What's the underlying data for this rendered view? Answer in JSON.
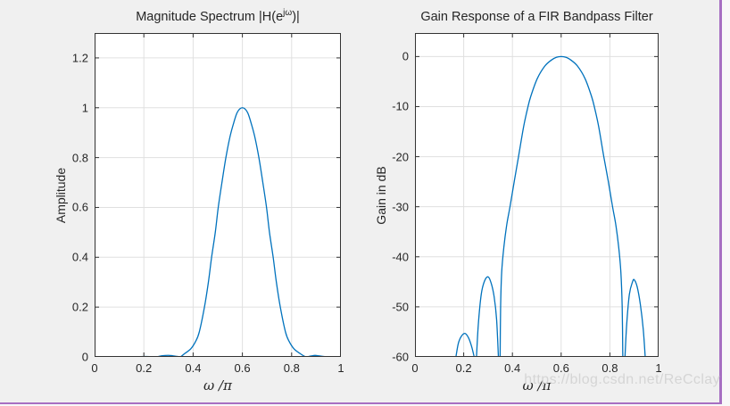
{
  "figure": {
    "background": "#f0f0f0",
    "outer_background": "#f8f8f8",
    "border_color": "#a76fc2"
  },
  "axes_style": {
    "box_color": "#333333",
    "grid_color": "#e0e0e0",
    "tick_label_color": "#262626",
    "plot_background": "#ffffff"
  },
  "watermark": {
    "text": "https://blog.csdn.net/ReCclay",
    "color": "#d5d5d5"
  },
  "chart_data": [
    {
      "type": "line",
      "title_prefix": "Magnitude Spectrum |H(e",
      "title_sup": "jω",
      "title_suffix": ")|",
      "xlabel": "ω /π",
      "ylabel": "Amplitude",
      "xlim": [
        0,
        1
      ],
      "ylim": [
        0,
        1.3
      ],
      "xticks": [
        0,
        0.2,
        0.4,
        0.6,
        0.8,
        1
      ],
      "xtick_labels": [
        "0",
        "0.2",
        "0.4",
        "0.6",
        "0.8",
        "1"
      ],
      "yticks": [
        0,
        0.2,
        0.4,
        0.6,
        0.8,
        1,
        1.2
      ],
      "ytick_labels": [
        "0",
        "0.2",
        "0.4",
        "0.6",
        "0.8",
        "1",
        "1.2"
      ],
      "grid": true,
      "legend": null,
      "line_color": "#0072BD",
      "series": [
        {
          "name": "magnitude",
          "segments": [
            [
              [
                0,
                0
              ],
              [
                0.05,
                0
              ],
              [
                0.1,
                0
              ],
              [
                0.15,
                0
              ],
              [
                0.168,
                0
              ],
              [
                0.185,
                0.0012
              ],
              [
                0.205,
                0.0017
              ],
              [
                0.225,
                0.0012
              ],
              [
                0.244,
                0.0002
              ],
              [
                0.253,
                0.0002
              ],
              [
                0.275,
                0.0048
              ],
              [
                0.3,
                0.0063
              ],
              [
                0.318,
                0.0045
              ],
              [
                0.335,
                0.002
              ],
              [
                0.344,
                0.0004
              ],
              [
                0.35,
                0.001
              ],
              [
                0.365,
                0.013
              ],
              [
                0.39,
                0.032
              ],
              [
                0.41,
                0.062
              ],
              [
                0.425,
                0.1
              ],
              [
                0.446,
                0.2
              ],
              [
                0.462,
                0.3
              ],
              [
                0.475,
                0.4
              ],
              [
                0.49,
                0.5
              ],
              [
                0.502,
                0.6
              ],
              [
                0.517,
                0.7
              ],
              [
                0.533,
                0.8
              ],
              [
                0.55,
                0.885
              ],
              [
                0.565,
                0.94
              ],
              [
                0.58,
                0.983
              ],
              [
                0.6,
                1.0
              ],
              [
                0.62,
                0.983
              ],
              [
                0.635,
                0.94
              ],
              [
                0.65,
                0.885
              ],
              [
                0.667,
                0.8
              ],
              [
                0.683,
                0.7
              ],
              [
                0.698,
                0.6
              ],
              [
                0.71,
                0.5
              ],
              [
                0.725,
                0.4
              ],
              [
                0.738,
                0.3
              ],
              [
                0.754,
                0.2
              ],
              [
                0.775,
                0.1
              ],
              [
                0.79,
                0.062
              ],
              [
                0.81,
                0.032
              ],
              [
                0.835,
                0.013
              ],
              [
                0.855,
                0.001
              ],
              [
                0.862,
                0.0004
              ],
              [
                0.88,
                0.004
              ],
              [
                0.895,
                0.006
              ],
              [
                0.91,
                0.0045
              ],
              [
                0.93,
                0.0015
              ],
              [
                0.946,
                0
              ],
              [
                0.96,
                0
              ],
              [
                0.98,
                0
              ],
              [
                1,
                0
              ]
            ]
          ]
        }
      ]
    },
    {
      "type": "line",
      "title_prefix": "Gain Response of a FIR Bandpass Filter",
      "title_sup": "",
      "title_suffix": "",
      "xlabel": "ω /π",
      "ylabel": "Gain in dB",
      "xlim": [
        0,
        1
      ],
      "ylim": [
        -60,
        4.7
      ],
      "xticks": [
        0,
        0.2,
        0.4,
        0.6,
        0.8,
        1
      ],
      "xtick_labels": [
        "0",
        "0.2",
        "0.4",
        "0.6",
        "0.8",
        "1"
      ],
      "yticks": [
        0,
        -10,
        -20,
        -30,
        -40,
        -50,
        -60
      ],
      "ytick_labels": [
        "0",
        "-10",
        "-20",
        "-30",
        "-40",
        "-50",
        "-60"
      ],
      "grid": true,
      "legend": null,
      "line_color": "#0072BD",
      "series": [
        {
          "name": "gain-db",
          "segments": [
            [
              [
                0.168,
                -60
              ],
              [
                0.178,
                -57.3
              ],
              [
                0.19,
                -55.9
              ],
              [
                0.205,
                -55.3
              ],
              [
                0.22,
                -56.2
              ],
              [
                0.233,
                -58
              ],
              [
                0.243,
                -60
              ]
            ],
            [
              [
                0.2525,
                -60
              ],
              [
                0.26,
                -53.5
              ],
              [
                0.272,
                -47.5
              ],
              [
                0.285,
                -44.9
              ],
              [
                0.3,
                -44.0
              ],
              [
                0.313,
                -45.3
              ],
              [
                0.325,
                -48
              ],
              [
                0.335,
                -52.5
              ],
              [
                0.3425,
                -60
              ]
            ],
            [
              [
                0.3495,
                -60
              ],
              [
                0.3515,
                -50
              ],
              [
                0.356,
                -43
              ],
              [
                0.365,
                -38
              ],
              [
                0.377,
                -33.5
              ],
              [
                0.39,
                -30
              ],
              [
                0.408,
                -24.8
              ],
              [
                0.425,
                -20
              ],
              [
                0.446,
                -14
              ],
              [
                0.462,
                -10.4
              ],
              [
                0.475,
                -8
              ],
              [
                0.502,
                -4.4
              ],
              [
                0.533,
                -1.9
              ],
              [
                0.56,
                -0.7
              ],
              [
                0.58,
                -0.15
              ],
              [
                0.6,
                0
              ],
              [
                0.62,
                -0.15
              ],
              [
                0.64,
                -0.7
              ],
              [
                0.667,
                -1.9
              ],
              [
                0.698,
                -4.4
              ],
              [
                0.725,
                -8
              ],
              [
                0.738,
                -10.4
              ],
              [
                0.754,
                -14
              ],
              [
                0.775,
                -20
              ],
              [
                0.793,
                -24.8
              ],
              [
                0.811,
                -30
              ],
              [
                0.824,
                -33.5
              ],
              [
                0.836,
                -38
              ],
              [
                0.845,
                -43
              ],
              [
                0.8505,
                -50
              ],
              [
                0.853,
                -60
              ]
            ],
            [
              [
                0.862,
                -60
              ],
              [
                0.869,
                -53.5
              ],
              [
                0.88,
                -47.5
              ],
              [
                0.893,
                -45.0
              ],
              [
                0.9,
                -44.6
              ],
              [
                0.912,
                -46
              ],
              [
                0.925,
                -49.5
              ],
              [
                0.937,
                -54.5
              ],
              [
                0.945,
                -60
              ]
            ]
          ]
        }
      ]
    }
  ]
}
